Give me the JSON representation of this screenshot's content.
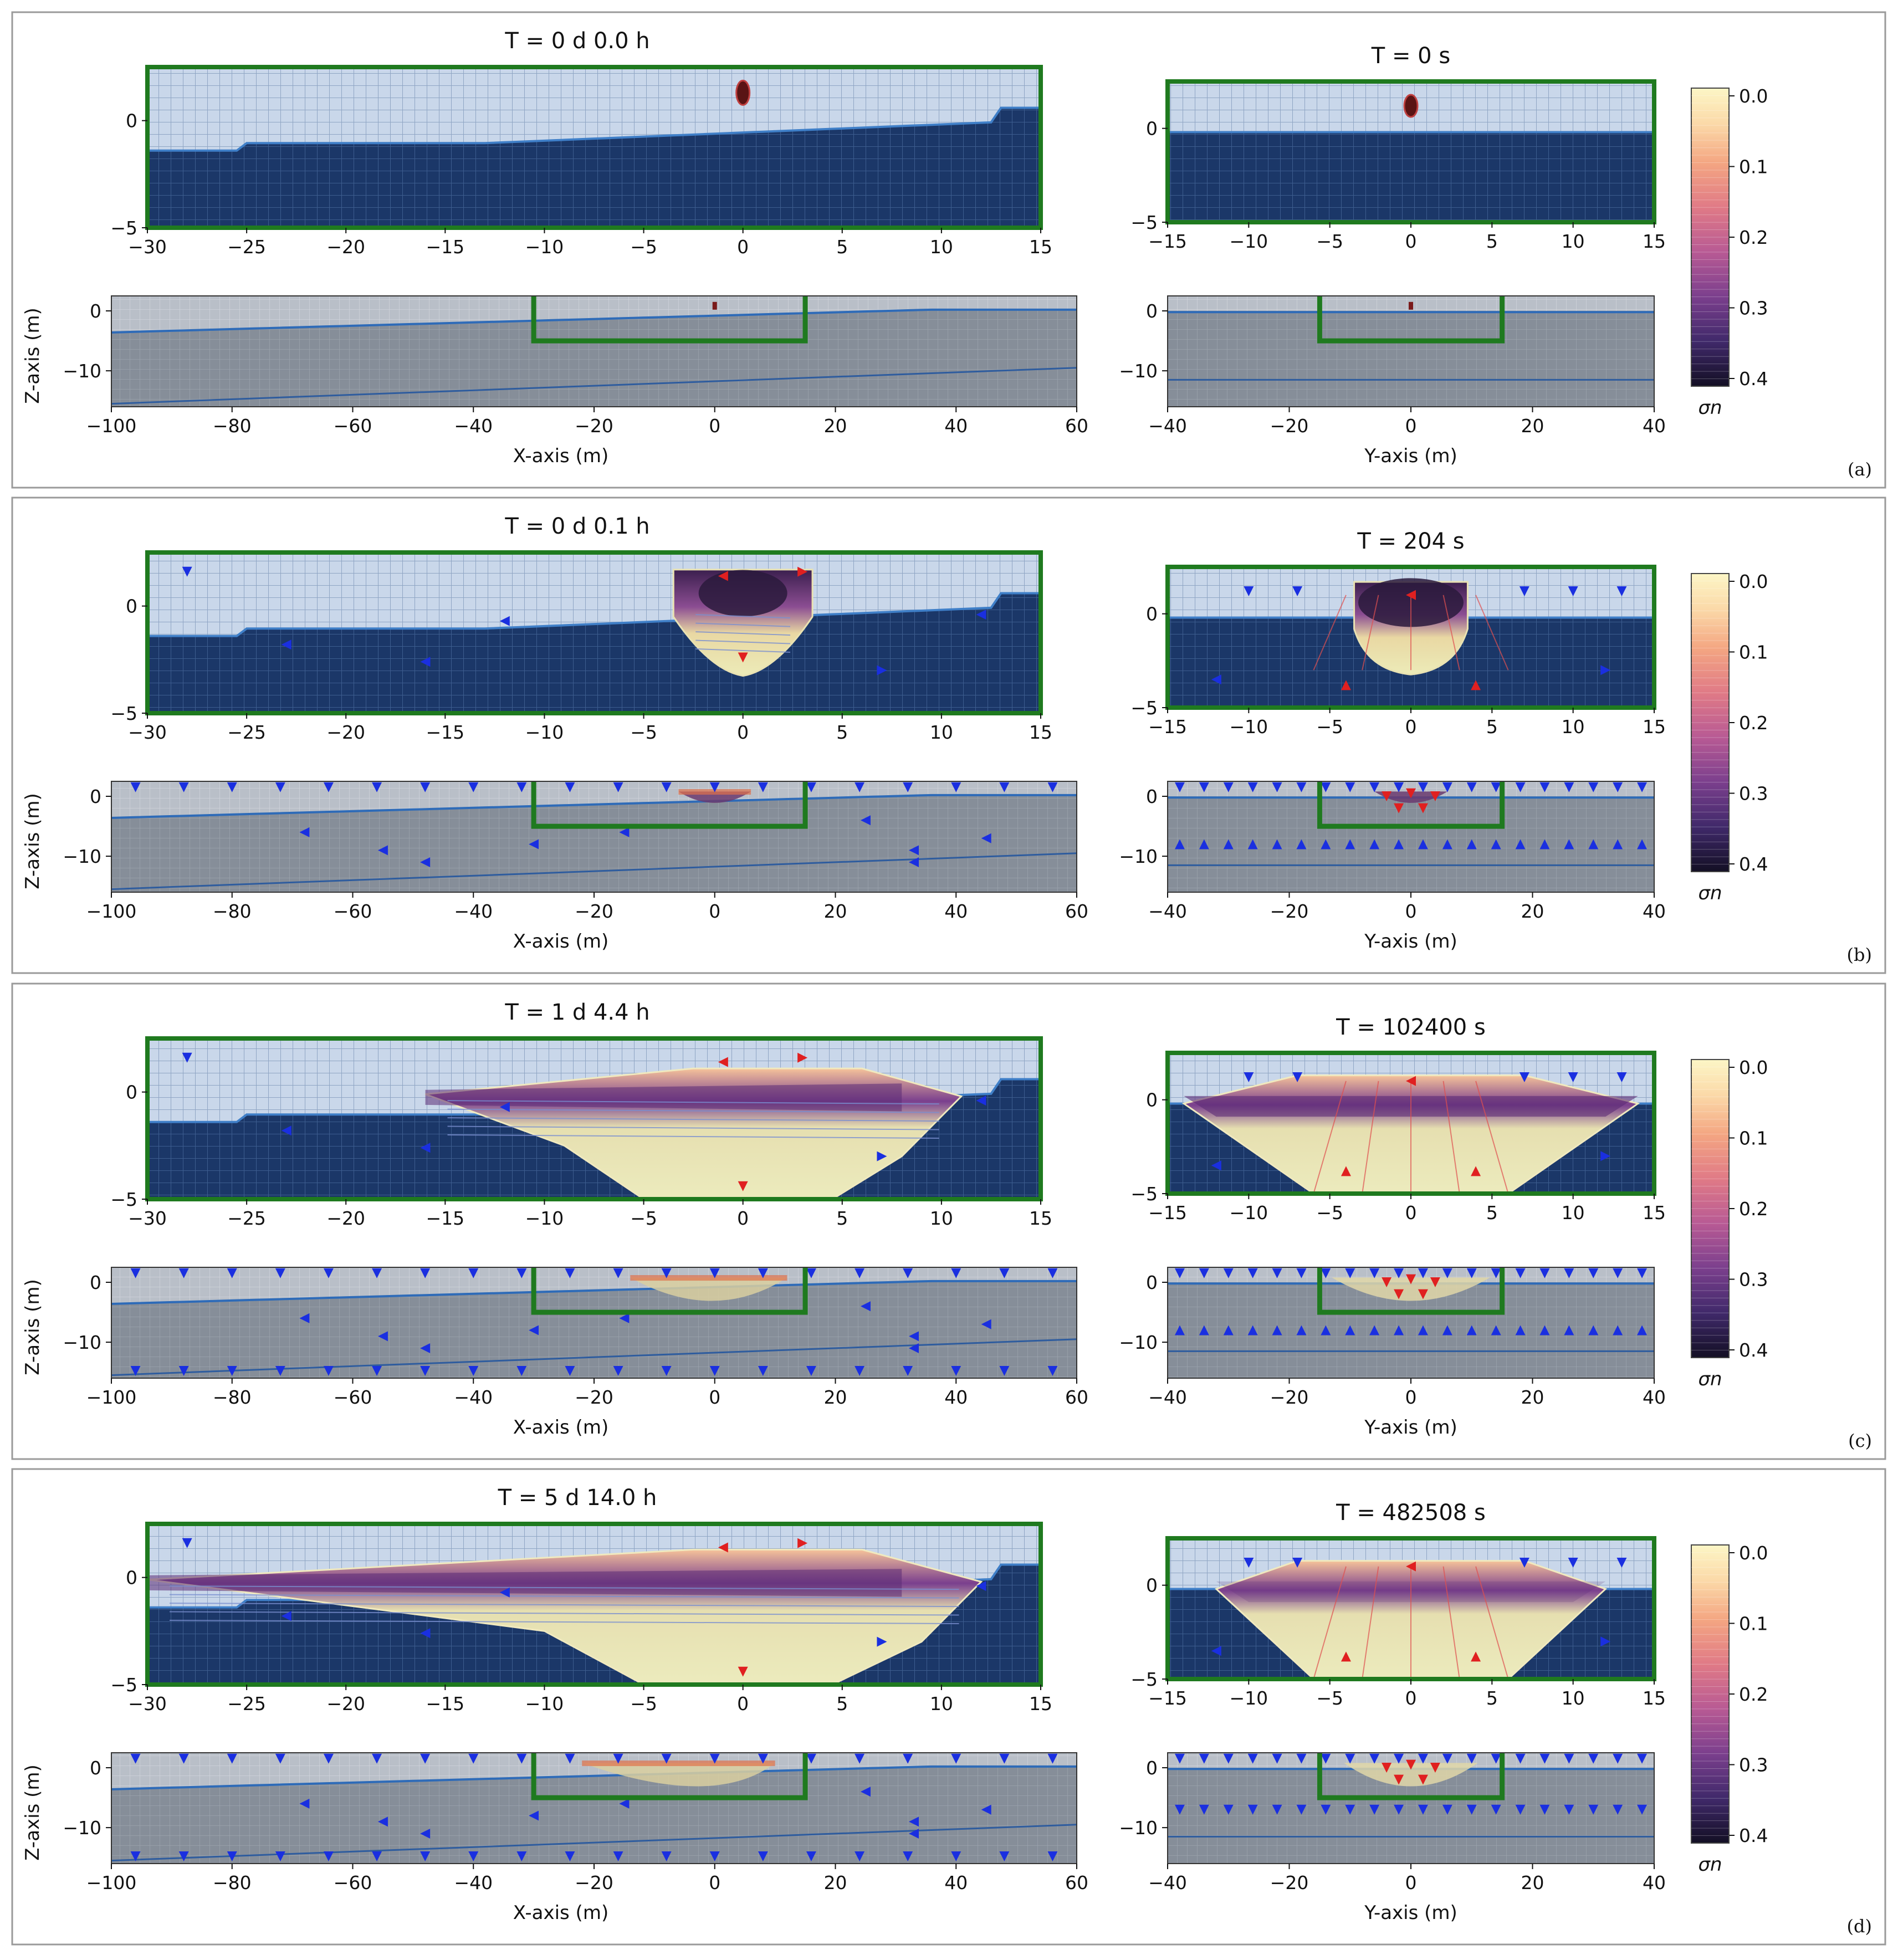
{
  "colors": {
    "water_light": "#c9d7ea",
    "grid_light": "#93aac8",
    "water_dark": "#1b3768",
    "grid_dark": "#37578a",
    "ground": "#8a929c",
    "ground_grid": "#a2a9b2",
    "green_frame": "#1f7a1f",
    "plume_light": "#e8e3b4",
    "plume_dark": "#2a1a3c",
    "arrow_blue": "#1a2fe0",
    "arrow_red": "#e02020",
    "arrow_orange": "#ee8a20"
  },
  "chart_data": {
    "type": "heatmap",
    "colorbar": {
      "label": "σn",
      "ticks": [
        "0.0",
        "0.1",
        "0.2",
        "0.3",
        "0.4"
      ],
      "range": [
        0.0,
        0.4
      ],
      "colormap": "magma_r"
    },
    "axes_ranges": {
      "top_left": {
        "x": [
          -30,
          15
        ],
        "z": [
          -5,
          2.5
        ],
        "xticks": [
          "−30",
          "−25",
          "−20",
          "−15",
          "−10",
          "−5",
          "0",
          "5",
          "10",
          "15"
        ],
        "zticks": [
          "0",
          "−5"
        ]
      },
      "top_right": {
        "x": [
          -15,
          15
        ],
        "z": [
          -5,
          2.5
        ],
        "xticks": [
          "−15",
          "−10",
          "−5",
          "0",
          "5",
          "10",
          "15"
        ],
        "zticks": [
          "0",
          "−5"
        ]
      },
      "bottom_left": {
        "x": [
          -100,
          60
        ],
        "z": [
          -16,
          2.5
        ],
        "xticks": [
          "−100",
          "−80",
          "−60",
          "−40",
          "−20",
          "0",
          "20",
          "40",
          "60"
        ],
        "zticks": [
          "0",
          "−10"
        ],
        "xlabel": "X-axis (m)",
        "ylabel": "Z-axis (m)"
      },
      "bottom_right": {
        "x": [
          -40,
          40
        ],
        "z": [
          -16,
          2.5
        ],
        "xticks": [
          "−40",
          "−20",
          "0",
          "20",
          "40"
        ],
        "zticks": [
          "0",
          "−10"
        ],
        "xlabel": "Y-axis (m)"
      }
    },
    "panels": [
      {
        "tag": "(a)",
        "title_left": "T = 0 d  0.0 h",
        "title_right": "T = 0 s",
        "plume_x": [
          0,
          0
        ],
        "plume_y": [
          0,
          0
        ],
        "plume_depth": 0,
        "plume_far_x": [
          0,
          0
        ],
        "plume_far_y": [
          0,
          0
        ]
      },
      {
        "tag": "(b)",
        "title_left": "T = 0 d  0.1 h",
        "title_right": "T = 204 s",
        "plume_x": [
          -3.5,
          3.5
        ],
        "plume_y": [
          -3.5,
          3.5
        ],
        "plume_depth": -3,
        "plume_far_x": [
          -6,
          6
        ],
        "plume_far_y": [
          -6,
          6
        ]
      },
      {
        "tag": "(c)",
        "title_left": "T = 1 d  4.4 h",
        "title_right": "T = 102400 s",
        "plume_x": [
          -16,
          11
        ],
        "plume_y": [
          -14,
          14
        ],
        "plume_depth": -5,
        "plume_far_x": [
          -14,
          12
        ],
        "plume_far_y": [
          -13,
          13
        ]
      },
      {
        "tag": "(d)",
        "title_left": "T = 5 d 14.0 h",
        "title_right": "T = 482508 s",
        "plume_x": [
          -30,
          12
        ],
        "plume_y": [
          -12,
          12
        ],
        "plume_depth": -5,
        "plume_far_x": [
          -22,
          10
        ],
        "plume_far_y": [
          -11,
          11
        ]
      }
    ]
  }
}
